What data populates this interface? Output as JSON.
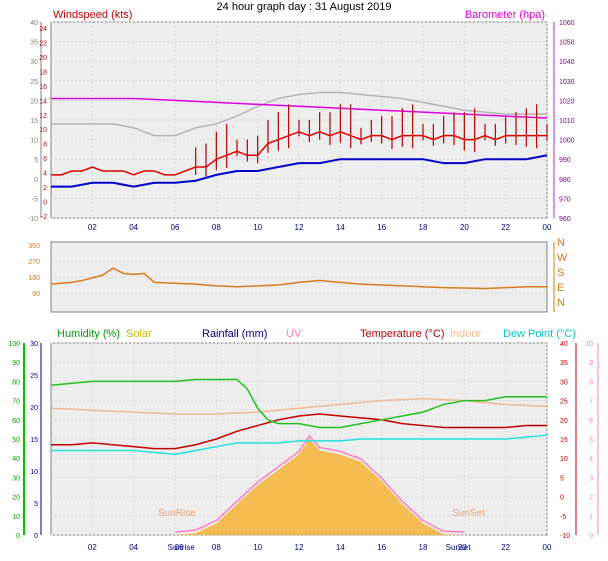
{
  "title": "24 hour graph day : 31 August 2019",
  "colors": {
    "wind": "#e00000",
    "gust_dark": "#b00000",
    "avg_wind": "#0000c8",
    "baro": "#e000e0",
    "temp_baro_gray": "#b4b4b4",
    "winddir": "#d87a1a",
    "humidity": "#20c020",
    "solar": "#f5b640",
    "rain": "#000080",
    "uv": "#ff80c0",
    "temperature": "#c00000",
    "indoor": "#f0b890",
    "dewpoint": "#20e0e0",
    "humidity_axis": "#00a000",
    "plot_bg": "#eeeeee"
  },
  "chart_data": [
    {
      "type": "line",
      "name": "wind-baro",
      "left_label": "Windspeed (kts)",
      "right_label": "Barometer (hpa)",
      "x_ticks": [
        "02",
        "04",
        "06",
        "08",
        "10",
        "12",
        "14",
        "16",
        "18",
        "20",
        "22",
        "00"
      ],
      "left_ticks": [
        "-10",
        "-5",
        "0",
        "5",
        "10",
        "15",
        "20",
        "25",
        "30",
        "35",
        "40"
      ],
      "left_inner_ticks": [
        "-2",
        "0",
        "2",
        "4",
        "6",
        "8",
        "10",
        "12",
        "14",
        "16",
        "18",
        "20",
        "22",
        "24"
      ],
      "right_ticks": [
        "960",
        "970",
        "980",
        "990",
        "1000",
        "1010",
        "1020",
        "1030",
        "1040",
        "1050",
        "1060"
      ],
      "xlim": [
        0,
        24
      ],
      "ylim_left": [
        -10,
        40
      ],
      "ylim_right": [
        960,
        1060
      ],
      "series": [
        {
          "name": "wind",
          "x": [
            0,
            0.5,
            1,
            1.5,
            2,
            2.5,
            3,
            3.5,
            4,
            4.5,
            5,
            5.5,
            6,
            6.5,
            7,
            7.5,
            8,
            8.5,
            9,
            9.5,
            10,
            10.5,
            11,
            11.5,
            12,
            12.5,
            13,
            13.5,
            14,
            14.5,
            15,
            15.5,
            16,
            16.5,
            17,
            17.5,
            18,
            18.5,
            19,
            19.5,
            20,
            20.5,
            21,
            21.5,
            22,
            22.5,
            23,
            23.5,
            24
          ],
          "y": [
            1,
            1,
            2,
            2,
            3,
            2,
            2,
            2,
            1,
            2,
            2,
            1,
            1,
            2,
            3,
            3,
            5,
            6,
            7,
            6,
            6,
            9,
            10,
            11,
            12,
            11,
            12,
            11,
            12,
            11,
            10,
            11,
            11,
            10,
            11,
            11,
            11,
            10,
            11,
            11,
            10,
            10,
            11,
            10,
            11,
            11,
            11,
            11,
            11
          ]
        },
        {
          "name": "avg_wind",
          "x": [
            0,
            1,
            2,
            3,
            4,
            5,
            6,
            7,
            8,
            9,
            10,
            11,
            12,
            13,
            14,
            15,
            16,
            17,
            18,
            19,
            20,
            21,
            22,
            23,
            24
          ],
          "y": [
            -2,
            -2,
            -1,
            -1,
            -2,
            -1,
            -1,
            -0.5,
            1,
            2,
            2,
            3,
            4,
            4,
            5,
            5,
            5,
            5,
            5,
            4,
            4,
            5,
            5,
            5,
            6
          ]
        },
        {
          "name": "barometer",
          "x": [
            0,
            2,
            4,
            6,
            8,
            10,
            12,
            14,
            16,
            18,
            20,
            22,
            24
          ],
          "y": [
            1021,
            1021,
            1021,
            1020,
            1019,
            1018,
            1017,
            1016,
            1015,
            1014,
            1013,
            1012,
            1011
          ]
        },
        {
          "name": "temp_gray",
          "x": [
            0,
            2,
            3,
            4,
            5,
            6,
            7,
            8,
            9,
            10,
            11,
            12,
            13,
            14,
            15,
            16,
            17,
            18,
            19,
            20,
            21,
            22,
            23,
            24
          ],
          "y": [
            1008,
            1008,
            1008,
            1006,
            1002,
            1002,
            1006,
            1008,
            1012,
            1017,
            1021,
            1023,
            1024,
            1024,
            1023,
            1022,
            1021,
            1019,
            1017,
            1015,
            1014,
            1013,
            1013,
            1013
          ]
        }
      ]
    },
    {
      "type": "line",
      "name": "wind-direction",
      "left_ticks": [
        "90",
        "180",
        "270",
        "360"
      ],
      "right_labels": [
        "N",
        "W",
        "S",
        "E",
        "N"
      ],
      "xlim": [
        0,
        24
      ],
      "ylim": [
        0,
        360
      ],
      "series": [
        {
          "name": "direction",
          "x": [
            0,
            0.5,
            1,
            1.5,
            2,
            2.5,
            3,
            3.5,
            4,
            4.5,
            5,
            6,
            7,
            8,
            9,
            10,
            11,
            12,
            13,
            14,
            15,
            16,
            17,
            18,
            19,
            20,
            21,
            22,
            23,
            24
          ],
          "y": [
            140,
            145,
            150,
            160,
            175,
            190,
            230,
            200,
            195,
            200,
            150,
            145,
            140,
            130,
            125,
            130,
            135,
            150,
            160,
            150,
            140,
            135,
            130,
            125,
            120,
            118,
            115,
            120,
            125,
            125
          ]
        }
      ]
    },
    {
      "type": "area",
      "name": "temperature-solar",
      "labels": {
        "humidity": "Humidity (%)",
        "solar": "Solar",
        "rainfall": "Rainfall (mm)",
        "uv": "UV",
        "temperature": "Temperature (°C)",
        "indoor": "Indoor",
        "dewpoint": "Dew Point (°C)"
      },
      "x_ticks": [
        "02",
        "04",
        "Sunrise",
        "06",
        "08",
        "10",
        "12",
        "14",
        "16",
        "18",
        "Sunset",
        "20",
        "22",
        "00"
      ],
      "humidity_ticks": [
        "0",
        "10",
        "20",
        "30",
        "40",
        "50",
        "60",
        "70",
        "80",
        "90",
        "100"
      ],
      "rain_ticks": [
        "0",
        "5",
        "10",
        "15",
        "20",
        "25",
        "30"
      ],
      "temp_ticks": [
        "-10",
        "-5",
        "0",
        "5",
        "10",
        "15",
        "20",
        "25",
        "30",
        "35",
        "40"
      ],
      "uv_ticks": [
        "0",
        "1",
        "2",
        "3",
        "4",
        "5",
        "6",
        "7",
        "8",
        "9",
        "10"
      ],
      "sun_labels": [
        "SunRise",
        "SunSet"
      ],
      "xlim": [
        0,
        24
      ],
      "ylim_temp": [
        -10,
        40
      ],
      "series": [
        {
          "name": "humidity",
          "x": [
            0,
            2,
            4,
            6,
            7,
            8,
            9,
            9.5,
            10,
            10.5,
            11,
            12,
            13,
            14,
            15,
            16,
            17,
            18,
            19,
            20,
            21,
            22,
            23,
            24
          ],
          "y": [
            29,
            30,
            30,
            30,
            30.5,
            30.5,
            30.5,
            28,
            23,
            20,
            19,
            19,
            18,
            18,
            19,
            20,
            21,
            22,
            24,
            25,
            25,
            26,
            26,
            26
          ]
        },
        {
          "name": "temperature",
          "x": [
            0,
            1,
            2,
            3,
            4,
            5,
            6,
            7,
            8,
            9,
            10,
            11,
            12,
            13,
            14,
            15,
            16,
            17,
            18,
            19,
            20,
            21,
            22,
            23,
            24
          ],
          "y": [
            13.5,
            13.5,
            14,
            13.5,
            13,
            12.5,
            12.5,
            13.5,
            15,
            17,
            18.5,
            20,
            21,
            21.5,
            21,
            20.5,
            20,
            19,
            18.5,
            18,
            18,
            18,
            18,
            18.5,
            18.5
          ]
        },
        {
          "name": "indoor",
          "x": [
            0,
            2,
            4,
            6,
            8,
            10,
            12,
            14,
            16,
            18,
            20,
            22,
            24
          ],
          "y": [
            23,
            22.5,
            22,
            21.5,
            21.5,
            22,
            23,
            24,
            25,
            25.5,
            25,
            24,
            23.5
          ]
        },
        {
          "name": "dewpoint",
          "x": [
            0,
            2,
            4,
            6,
            7,
            8,
            9,
            10,
            11,
            12,
            13,
            14,
            15,
            16,
            17,
            18,
            19,
            20,
            21,
            22,
            23,
            24
          ],
          "y": [
            12,
            12,
            12,
            11,
            12,
            13,
            14,
            14,
            14,
            14.5,
            14.5,
            14.5,
            15,
            15,
            15,
            15,
            15,
            15,
            15,
            15,
            15.5,
            16
          ]
        },
        {
          "name": "solar_uv",
          "x": [
            6,
            7,
            8,
            9,
            10,
            11,
            12,
            12.5,
            13,
            14,
            15,
            16,
            17,
            18,
            19,
            20
          ],
          "y": [
            -10,
            -9.5,
            -7,
            -2,
            3,
            7,
            11,
            15,
            12,
            11,
            9,
            4,
            -2,
            -7,
            -9.8,
            -10
          ]
        }
      ]
    }
  ]
}
